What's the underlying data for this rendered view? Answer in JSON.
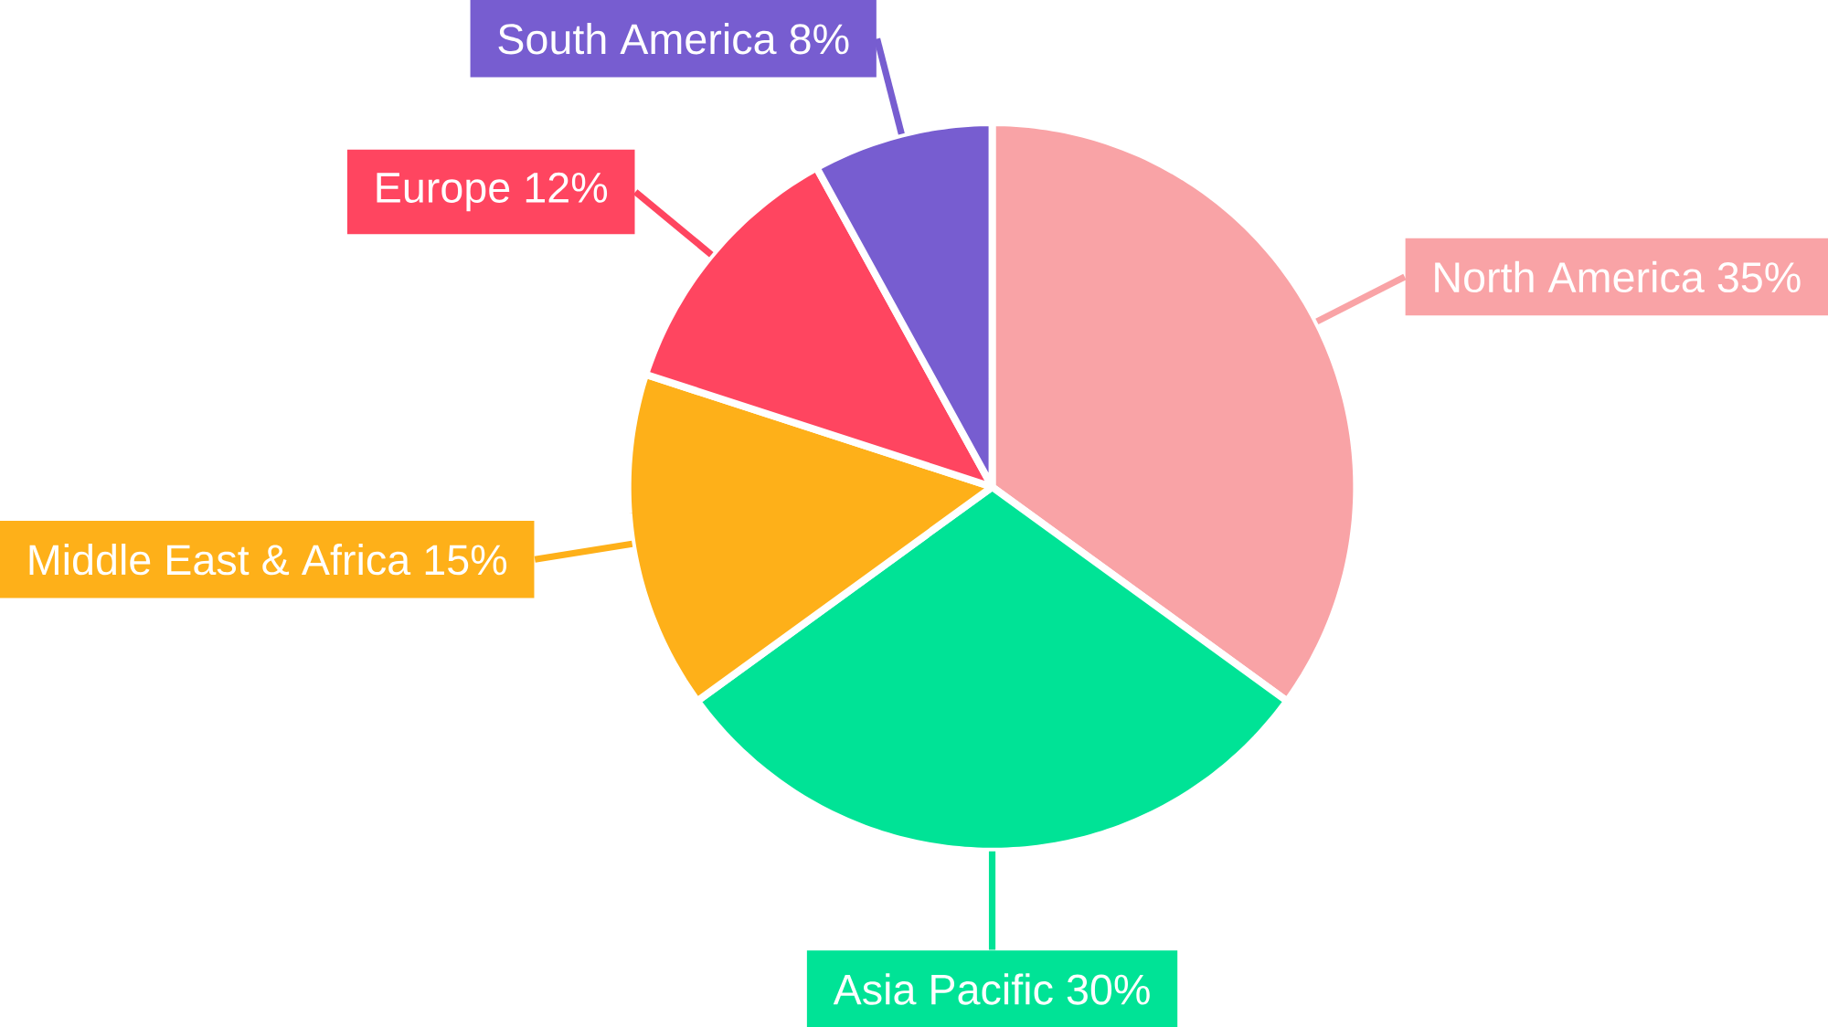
{
  "chart_data": {
    "type": "pie",
    "categories": [
      "North America",
      "Asia Pacific",
      "Middle East & Africa",
      "Europe",
      "South America"
    ],
    "values": [
      35,
      30,
      15,
      12,
      8
    ],
    "value_labels": [
      "35%",
      "30%",
      "15%",
      "12%",
      "8%"
    ],
    "colors": [
      "#f9a3a6",
      "#00e396",
      "#feb019",
      "#ff4560",
      "#775dd0"
    ]
  }
}
